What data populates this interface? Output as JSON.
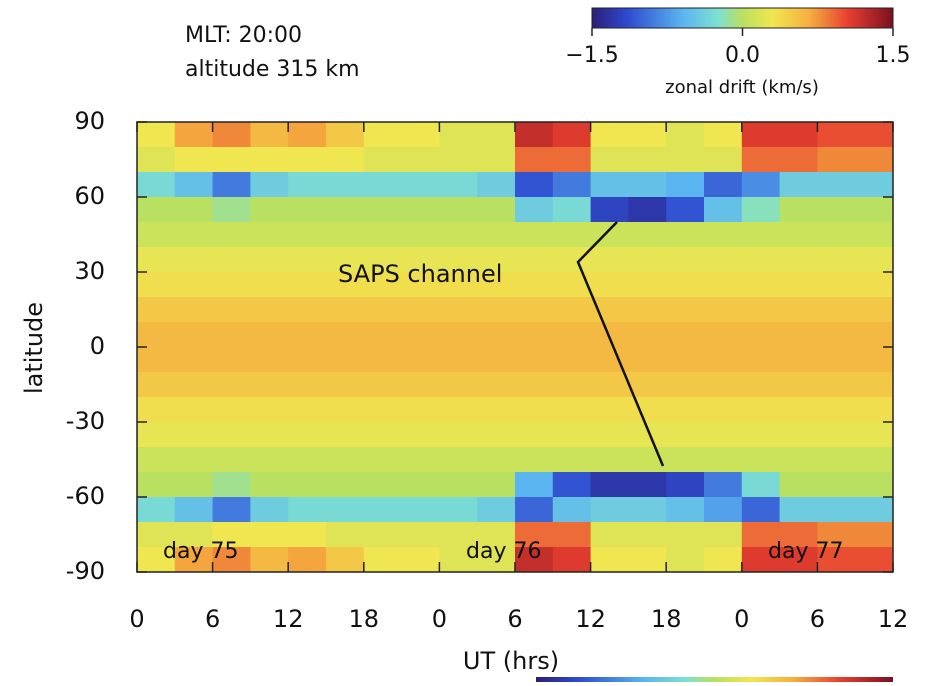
{
  "chart_data": {
    "type": "heatmap",
    "annotations": [
      "MLT: 20:00",
      "altitude 315 km",
      "SAPS channel",
      "day 75",
      "day 76",
      "day 77"
    ],
    "xlabel": "UT (hrs)",
    "ylabel": "latitude",
    "xlim": [
      0,
      60
    ],
    "ylim": [
      -90,
      90
    ],
    "xticks": [
      {
        "value": 0,
        "label": "0"
      },
      {
        "value": 6,
        "label": "6"
      },
      {
        "value": 12,
        "label": "12"
      },
      {
        "value": 18,
        "label": "18"
      },
      {
        "value": 24,
        "label": "0"
      },
      {
        "value": 30,
        "label": "6"
      },
      {
        "value": 36,
        "label": "12"
      },
      {
        "value": 42,
        "label": "18"
      },
      {
        "value": 48,
        "label": "0"
      },
      {
        "value": 54,
        "label": "6"
      },
      {
        "value": 60,
        "label": "12"
      }
    ],
    "yticks": [
      90,
      60,
      30,
      0,
      -30,
      -60,
      -90
    ],
    "colorbar": {
      "label": "zonal drift (km/s)",
      "clim": [
        -1.5,
        1.5
      ],
      "ticks": [
        {
          "value": -1.5,
          "label": "−1.5"
        },
        {
          "value": 0,
          "label": "0.0"
        },
        {
          "value": 1.5,
          "label": "1.5"
        }
      ]
    },
    "x": [
      1.5,
      4.5,
      7.5,
      10.5,
      13.5,
      16.5,
      19.5,
      22.5,
      25.5,
      28.5,
      31.5,
      34.5,
      37.5,
      40.5,
      43.5,
      46.5,
      49.5,
      52.5,
      55.5,
      58.5
    ],
    "y": [
      85,
      75,
      65,
      55,
      45,
      35,
      25,
      15,
      5,
      -5,
      -15,
      -25,
      -35,
      -45,
      -55,
      -65,
      -75,
      -85
    ],
    "z": [
      [
        0.3,
        0.7,
        0.8,
        0.6,
        0.7,
        0.5,
        0.3,
        0.3,
        0.2,
        0.2,
        1.2,
        1.1,
        0.3,
        0.3,
        0.2,
        0.3,
        1.1,
        1.1,
        1.0,
        1.0
      ],
      [
        0.2,
        0.3,
        0.3,
        0.3,
        0.3,
        0.3,
        0.2,
        0.2,
        0.2,
        0.2,
        0.9,
        0.9,
        0.2,
        0.2,
        0.2,
        0.2,
        0.9,
        0.9,
        0.8,
        0.8
      ],
      [
        -0.3,
        -0.5,
        -0.9,
        -0.4,
        -0.3,
        -0.3,
        -0.3,
        -0.3,
        -0.3,
        -0.4,
        -1.1,
        -0.9,
        -0.5,
        -0.5,
        -0.6,
        -1.0,
        -0.8,
        -0.4,
        -0.4,
        -0.4
      ],
      [
        0.0,
        0.0,
        -0.1,
        0.0,
        0.0,
        0.0,
        0.0,
        0.0,
        0.0,
        0.0,
        -0.4,
        -0.3,
        -1.2,
        -1.3,
        -1.1,
        -0.5,
        -0.2,
        0.0,
        0.0,
        0.0
      ],
      [
        0.1,
        0.1,
        0.1,
        0.1,
        0.1,
        0.1,
        0.1,
        0.1,
        0.1,
        0.1,
        0.1,
        0.1,
        0.1,
        0.1,
        0.1,
        0.1,
        0.1,
        0.1,
        0.1,
        0.1
      ],
      [
        0.25,
        0.25,
        0.25,
        0.25,
        0.25,
        0.25,
        0.25,
        0.25,
        0.25,
        0.25,
        0.25,
        0.25,
        0.25,
        0.25,
        0.25,
        0.25,
        0.25,
        0.25,
        0.25,
        0.25
      ],
      [
        0.35,
        0.35,
        0.35,
        0.35,
        0.35,
        0.35,
        0.35,
        0.35,
        0.35,
        0.35,
        0.35,
        0.35,
        0.35,
        0.35,
        0.35,
        0.35,
        0.35,
        0.35,
        0.35,
        0.35
      ],
      [
        0.5,
        0.5,
        0.5,
        0.5,
        0.5,
        0.5,
        0.5,
        0.5,
        0.5,
        0.5,
        0.5,
        0.5,
        0.5,
        0.5,
        0.5,
        0.5,
        0.5,
        0.5,
        0.5,
        0.5
      ],
      [
        0.6,
        0.6,
        0.6,
        0.6,
        0.6,
        0.6,
        0.6,
        0.6,
        0.6,
        0.6,
        0.6,
        0.6,
        0.6,
        0.6,
        0.6,
        0.6,
        0.6,
        0.6,
        0.6,
        0.6
      ],
      [
        0.6,
        0.6,
        0.6,
        0.6,
        0.6,
        0.6,
        0.6,
        0.6,
        0.6,
        0.6,
        0.6,
        0.6,
        0.6,
        0.6,
        0.6,
        0.6,
        0.6,
        0.6,
        0.6,
        0.6
      ],
      [
        0.5,
        0.5,
        0.5,
        0.5,
        0.5,
        0.5,
        0.5,
        0.5,
        0.5,
        0.5,
        0.5,
        0.5,
        0.5,
        0.5,
        0.5,
        0.5,
        0.5,
        0.5,
        0.5,
        0.5
      ],
      [
        0.35,
        0.35,
        0.35,
        0.35,
        0.35,
        0.35,
        0.35,
        0.35,
        0.35,
        0.35,
        0.35,
        0.35,
        0.35,
        0.35,
        0.35,
        0.35,
        0.35,
        0.35,
        0.35,
        0.35
      ],
      [
        0.25,
        0.25,
        0.25,
        0.25,
        0.25,
        0.25,
        0.25,
        0.25,
        0.25,
        0.25,
        0.25,
        0.25,
        0.25,
        0.25,
        0.25,
        0.25,
        0.25,
        0.25,
        0.25,
        0.25
      ],
      [
        0.1,
        0.1,
        0.1,
        0.1,
        0.1,
        0.1,
        0.1,
        0.1,
        0.1,
        0.1,
        0.1,
        0.1,
        0.1,
        0.1,
        0.1,
        0.1,
        0.1,
        0.1,
        0.1,
        0.1
      ],
      [
        0.0,
        0.0,
        -0.1,
        0.0,
        0.0,
        0.0,
        0.0,
        0.0,
        0.0,
        0.0,
        -0.6,
        -1.1,
        -1.3,
        -1.3,
        -1.2,
        -0.9,
        -0.3,
        0.0,
        0.0,
        0.0
      ],
      [
        -0.3,
        -0.5,
        -0.9,
        -0.4,
        -0.3,
        -0.3,
        -0.3,
        -0.3,
        -0.3,
        -0.4,
        -1.0,
        -0.5,
        -0.4,
        -0.4,
        -0.5,
        -0.7,
        -1.0,
        -0.4,
        -0.4,
        -0.4
      ],
      [
        0.2,
        0.2,
        0.3,
        0.3,
        0.3,
        0.2,
        0.2,
        0.2,
        0.2,
        0.2,
        0.9,
        0.9,
        0.2,
        0.2,
        0.2,
        0.2,
        0.9,
        0.9,
        0.8,
        0.8
      ],
      [
        0.3,
        0.7,
        0.8,
        0.6,
        0.7,
        0.5,
        0.3,
        0.3,
        0.2,
        0.2,
        1.2,
        1.1,
        0.3,
        0.3,
        0.2,
        0.3,
        1.1,
        1.1,
        1.0,
        1.0
      ]
    ]
  }
}
